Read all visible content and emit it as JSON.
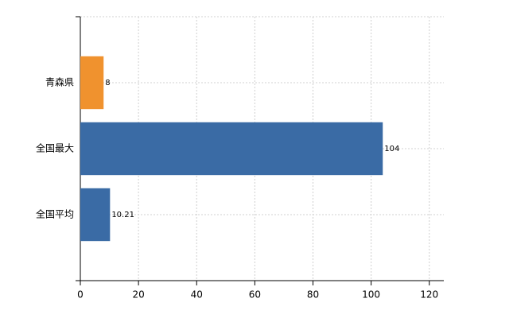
{
  "chart_data": {
    "type": "hbar",
    "categories": [
      "青森県",
      "全国最大",
      "全国平均"
    ],
    "values": [
      8,
      104,
      10.21
    ],
    "colors": [
      "#f0922e",
      "#3a6ba5",
      "#3a6ba5"
    ],
    "xlim": [
      0,
      125
    ],
    "xticks": [
      0,
      20,
      40,
      60,
      80,
      100,
      120
    ],
    "grid": true
  }
}
